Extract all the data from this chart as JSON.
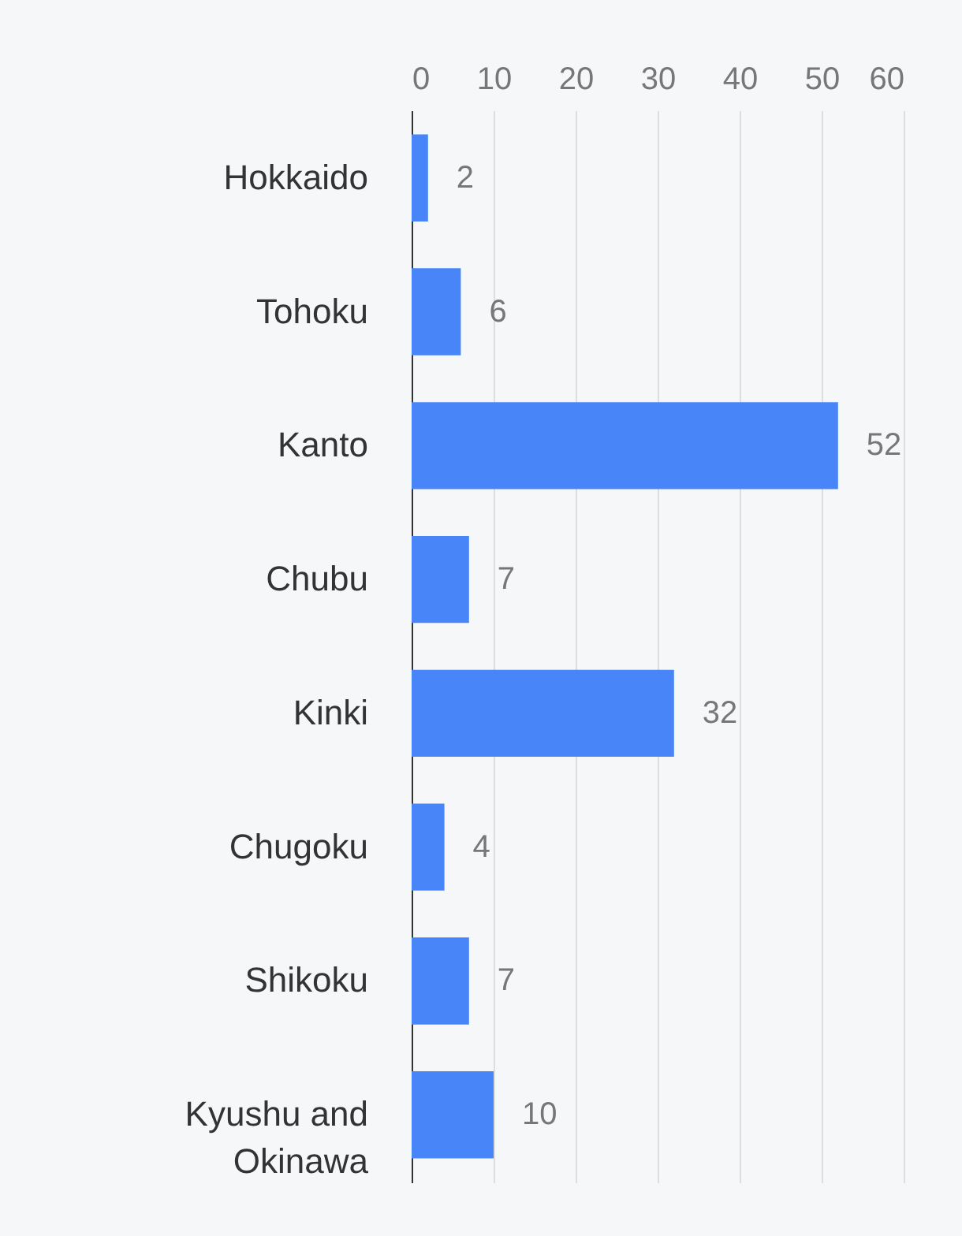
{
  "chart_data": {
    "type": "bar",
    "orientation": "horizontal",
    "categories": [
      "Hokkaido",
      "Tohoku",
      "Kanto",
      "Chubu",
      "Kinki",
      "Chugoku",
      "Shikoku",
      "Kyushu and Okinawa"
    ],
    "values": [
      2,
      6,
      52,
      7,
      32,
      4,
      7,
      10
    ],
    "color": "#4885f8",
    "xlim": [
      0,
      60
    ],
    "xticks": [
      0,
      10,
      20,
      30,
      40,
      50,
      60
    ],
    "grid": "x",
    "data_labels": true
  }
}
